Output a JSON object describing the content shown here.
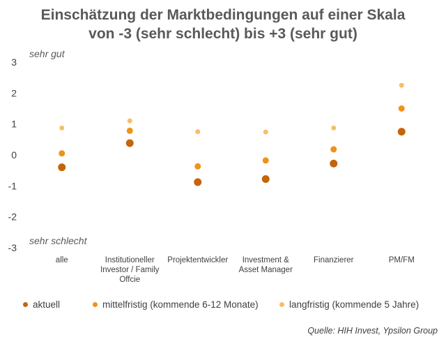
{
  "title_line1": "Einschätzung der Marktbedingungen auf einer Skala",
  "title_line2": "von -3 (sehr schlecht) bis +3 (sehr gut)",
  "annotation_top": "sehr gut",
  "annotation_bottom": "sehr schlecht",
  "source": "Quelle: HIH Invest, Ypsilon Group",
  "colors": {
    "aktuell": "#c4650a",
    "mittelfristig": "#f0921a",
    "langfristig": "#f9bd66"
  },
  "chart_data": {
    "type": "scatter",
    "title": "Einschätzung der Marktbedingungen auf einer Skala von -3 (sehr schlecht) bis +3 (sehr gut)",
    "ylim": [
      -3,
      3
    ],
    "yticks": [
      3,
      2,
      1,
      0,
      -1,
      -2,
      -3
    ],
    "grid": false,
    "legend_position": "bottom",
    "categories": [
      [
        "alle"
      ],
      [
        "Institutioneller",
        "Investor / Family",
        "Offcie"
      ],
      [
        "Projektentwickler"
      ],
      [
        "Investment &",
        "Asset Manager"
      ],
      [
        "Finanzierer"
      ],
      [
        "PM/FM"
      ]
    ],
    "series": [
      {
        "name": "aktuell",
        "values": [
          -0.4,
          0.38,
          -0.88,
          -0.78,
          -0.28,
          0.75
        ]
      },
      {
        "name": "mittelfristig (kommende 6-12 Monate)",
        "values": [
          0.05,
          0.78,
          -0.37,
          -0.18,
          0.18,
          1.5
        ]
      },
      {
        "name": "langfristig (kommende 5 Jahre)",
        "values": [
          0.87,
          1.1,
          0.75,
          0.74,
          0.87,
          2.25
        ]
      }
    ]
  }
}
